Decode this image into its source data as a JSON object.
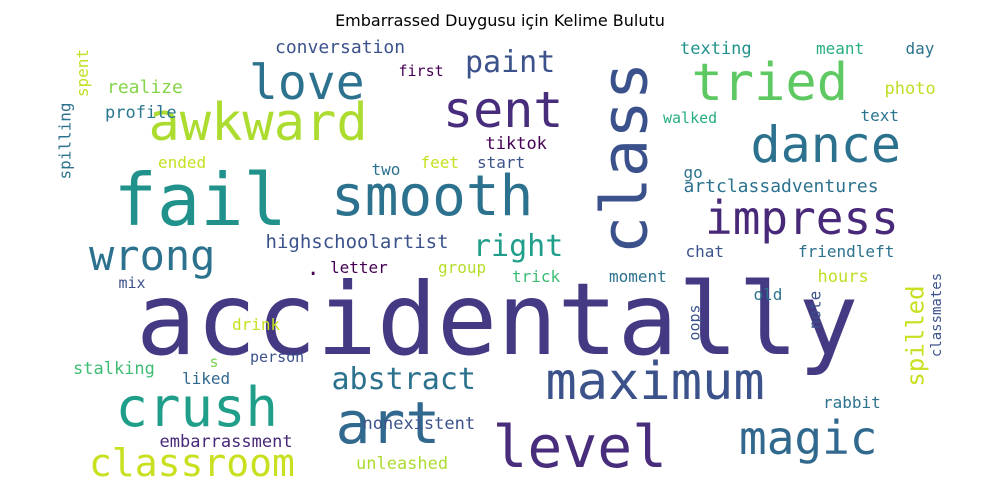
{
  "chart_data": {
    "type": "wordcloud",
    "title": "Embarrassed Duygusu için Kelime Bulutu",
    "words": [
      {
        "text": "accidentally",
        "weight": 100,
        "color": "#443983"
      },
      {
        "text": "fail",
        "weight": 68,
        "color": "#21918c"
      },
      {
        "text": "awkward",
        "weight": 44,
        "color": "#addc30"
      },
      {
        "text": "class",
        "weight": 55,
        "color": "#3b518b"
      },
      {
        "text": "tried",
        "weight": 45,
        "color": "#5ec962"
      },
      {
        "text": "love",
        "weight": 40,
        "color": "#2c728e"
      },
      {
        "text": "sent",
        "weight": 44,
        "color": "#472d7b"
      },
      {
        "text": "dance",
        "weight": 44,
        "color": "#2c728e"
      },
      {
        "text": "smooth",
        "weight": 48,
        "color": "#2c728e"
      },
      {
        "text": "impress",
        "weight": 40,
        "color": "#482878"
      },
      {
        "text": "wrong",
        "weight": 36,
        "color": "#2c728e"
      },
      {
        "text": "maximum",
        "weight": 44,
        "color": "#3b528b"
      },
      {
        "text": "crush",
        "weight": 48,
        "color": "#1f9e89"
      },
      {
        "text": "art",
        "weight": 50,
        "color": "#31688e"
      },
      {
        "text": "level",
        "weight": 50,
        "color": "#472d7b"
      },
      {
        "text": "magic",
        "weight": 40,
        "color": "#31688e"
      },
      {
        "text": "classroom",
        "weight": 32,
        "color": "#c8e020"
      },
      {
        "text": "abstract",
        "weight": 26,
        "color": "#2c728e"
      },
      {
        "text": "right",
        "weight": 26,
        "color": "#1f9e89"
      },
      {
        "text": "paint",
        "weight": 26,
        "color": "#3b528b"
      },
      {
        "text": "spilled",
        "weight": 22,
        "color": "#c8e020"
      },
      {
        "text": "conversation",
        "weight": 15,
        "color": "#3b528b"
      },
      {
        "text": "realize",
        "weight": 15,
        "color": "#86d549"
      },
      {
        "text": "profile",
        "weight": 15,
        "color": "#2a788e"
      },
      {
        "text": "first",
        "weight": 13,
        "color": "#440154"
      },
      {
        "text": "texting",
        "weight": 14,
        "color": "#21918c"
      },
      {
        "text": "meant",
        "weight": 13,
        "color": "#27ad81"
      },
      {
        "text": "day",
        "weight": 13,
        "color": "#2c728e"
      },
      {
        "text": "photo",
        "weight": 14,
        "color": "#bddf26"
      },
      {
        "text": "text",
        "weight": 13,
        "color": "#2c728e"
      },
      {
        "text": "walked",
        "weight": 12,
        "color": "#27ad81"
      },
      {
        "text": "tiktok",
        "weight": 14,
        "color": "#440154"
      },
      {
        "text": "spent",
        "weight": 13,
        "color": "#c2df23"
      },
      {
        "text": "spilling",
        "weight": 13,
        "color": "#2c728e"
      },
      {
        "text": "ended",
        "weight": 13,
        "color": "#c8e020"
      },
      {
        "text": "two",
        "weight": 13,
        "color": "#2c728e"
      },
      {
        "text": "feet",
        "weight": 13,
        "color": "#c8e020"
      },
      {
        "text": "start",
        "weight": 13,
        "color": "#3b528b"
      },
      {
        "text": "go",
        "weight": 13,
        "color": "#2c728e"
      },
      {
        "text": "artclassadventures",
        "weight": 15,
        "color": "#2c728e"
      },
      {
        "text": "highschoolartist",
        "weight": 16,
        "color": "#3b528b"
      },
      {
        "text": "chat",
        "weight": 13,
        "color": "#3b528b"
      },
      {
        "text": "friendleft",
        "weight": 14,
        "color": "#2c728e"
      },
      {
        "text": "letter",
        "weight": 13,
        "color": "#440154"
      },
      {
        "text": "group",
        "weight": 13,
        "color": "#b5de2b"
      },
      {
        "text": "trick",
        "weight": 13,
        "color": "#3dbc74"
      },
      {
        "text": "moment",
        "weight": 13,
        "color": "#2c728e"
      },
      {
        "text": "hours",
        "weight": 14,
        "color": "#bddf26"
      },
      {
        "text": "mix",
        "weight": 12,
        "color": "#3b528b"
      },
      {
        "text": "old",
        "weight": 13,
        "color": "#2c728e"
      },
      {
        "text": "oops",
        "weight": 13,
        "color": "#3b528b"
      },
      {
        "text": "note",
        "weight": 13,
        "color": "#3b528b"
      },
      {
        "text": "classmates",
        "weight": 12,
        "color": "#3b528b"
      },
      {
        "text": "drink",
        "weight": 13,
        "color": "#c8e020"
      },
      {
        "text": "s",
        "weight": 12,
        "color": "#7ad151"
      },
      {
        "text": "person",
        "weight": 13,
        "color": "#3b528b"
      },
      {
        "text": "stalking",
        "weight": 14,
        "color": "#3dbc74"
      },
      {
        "text": "liked",
        "weight": 13,
        "color": "#31688e"
      },
      {
        "text": "rabbit",
        "weight": 13,
        "color": "#2c728e"
      },
      {
        "text": "nonexistent",
        "weight": 14,
        "color": "#3b528b"
      },
      {
        "text": "embarrassment",
        "weight": 14,
        "color": "#482878"
      },
      {
        "text": "unleashed",
        "weight": 14,
        "color": "#addc30"
      },
      {
        "text": ".",
        "weight": 18,
        "color": "#440154"
      }
    ]
  }
}
